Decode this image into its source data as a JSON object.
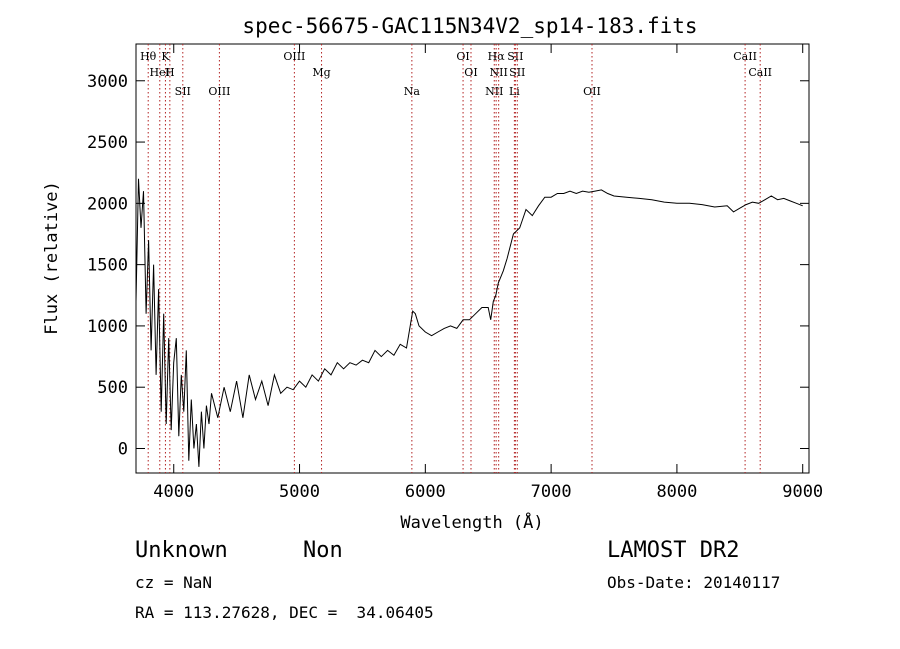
{
  "chart_data": {
    "type": "line",
    "title": "spec-56675-GAC115N34V2_sp14-183.fits",
    "xlabel": "Wavelength (Å)",
    "ylabel": "Flux (relative)",
    "xlim": [
      3700,
      9050
    ],
    "ylim": [
      -200,
      3300
    ],
    "x_ticks": [
      4000,
      5000,
      6000,
      7000,
      8000,
      9000
    ],
    "y_ticks": [
      0,
      500,
      1000,
      1500,
      2000,
      2500,
      3000
    ],
    "grid": false,
    "series": [
      {
        "x": [
          3700,
          3720,
          3740,
          3760,
          3780,
          3800,
          3820,
          3840,
          3860,
          3880,
          3900,
          3920,
          3940,
          3960,
          3980,
          4000,
          4020,
          4040,
          4060,
          4080,
          4100,
          4120,
          4140,
          4160,
          4180,
          4200,
          4220,
          4240,
          4260,
          4280,
          4300,
          4350,
          4400,
          4450,
          4500,
          4550,
          4600,
          4650,
          4700,
          4750,
          4800,
          4850,
          4900,
          4950,
          5000,
          5050,
          5100,
          5150,
          5200,
          5250,
          5300,
          5350,
          5400,
          5450,
          5500,
          5550,
          5600,
          5650,
          5700,
          5750,
          5800,
          5850,
          5880,
          5900,
          5920,
          5950,
          6000,
          6050,
          6100,
          6150,
          6200,
          6250,
          6300,
          6350,
          6400,
          6450,
          6500,
          6520,
          6540,
          6560,
          6580,
          6600,
          6620,
          6650,
          6700,
          6750,
          6800,
          6850,
          6900,
          6950,
          7000,
          7050,
          7100,
          7150,
          7200,
          7250,
          7300,
          7350,
          7400,
          7450,
          7500,
          7600,
          7700,
          7800,
          7900,
          8000,
          8100,
          8200,
          8300,
          8400,
          8450,
          8500,
          8550,
          8600,
          8650,
          8700,
          8750,
          8800,
          8850,
          8900,
          8950,
          9000
        ],
        "values": [
          1200,
          2200,
          1800,
          2100,
          1100,
          1700,
          800,
          1500,
          600,
          1300,
          300,
          1100,
          200,
          900,
          150,
          700,
          900,
          100,
          600,
          300,
          800,
          -100,
          400,
          0,
          200,
          -150,
          300,
          0,
          350,
          200,
          450,
          250,
          500,
          300,
          550,
          250,
          600,
          400,
          550,
          350,
          600,
          450,
          500,
          480,
          550,
          500,
          600,
          550,
          650,
          600,
          700,
          650,
          700,
          680,
          720,
          700,
          800,
          750,
          800,
          760,
          850,
          820,
          1000,
          1120,
          1100,
          1000,
          950,
          920,
          950,
          980,
          1000,
          980,
          1050,
          1050,
          1100,
          1150,
          1150,
          1050,
          1200,
          1250,
          1350,
          1400,
          1450,
          1550,
          1750,
          1800,
          1950,
          1900,
          1980,
          2050,
          2050,
          2080,
          2080,
          2100,
          2080,
          2100,
          2090,
          2100,
          2110,
          2080,
          2060,
          2050,
          2040,
          2030,
          2010,
          2000,
          2000,
          1990,
          1970,
          1980,
          1930,
          1960,
          1990,
          2010,
          2000,
          2030,
          2060,
          2030,
          2040,
          2020,
          2000,
          1980
        ]
      }
    ],
    "line_markers": [
      {
        "name": "Hθ",
        "x": 3797
      },
      {
        "name": "HeI",
        "x": 3889
      },
      {
        "name": "SII",
        "x": 4072
      },
      {
        "name": "K",
        "x": 3934
      },
      {
        "name": "H",
        "x": 3969
      },
      {
        "name": "OIII",
        "x": 4363
      },
      {
        "name": "OIII",
        "x": 4959
      },
      {
        "name": "Mg",
        "x": 5175
      },
      {
        "name": "Na",
        "x": 5893
      },
      {
        "name": "OI",
        "x": 6300
      },
      {
        "name": "OI",
        "x": 6363
      },
      {
        "name": "NII",
        "x": 6548
      },
      {
        "name": "Hα",
        "x": 6563
      },
      {
        "name": "NII",
        "x": 6583
      },
      {
        "name": "Li",
        "x": 6708
      },
      {
        "name": "SII",
        "x": 6716
      },
      {
        "name": "SII",
        "x": 6731
      },
      {
        "name": "OII",
        "x": 7325
      },
      {
        "name": "CaII",
        "x": 8542
      },
      {
        "name": "CaII",
        "x": 8662
      }
    ]
  },
  "info": {
    "object_class": "Unknown",
    "subclass": "Non",
    "redshift": "cz = NaN",
    "coords": "RA = 113.27628, DEC =  34.06405",
    "survey": "LAMOST DR2",
    "obs_date": "Obs-Date: 20140117"
  }
}
